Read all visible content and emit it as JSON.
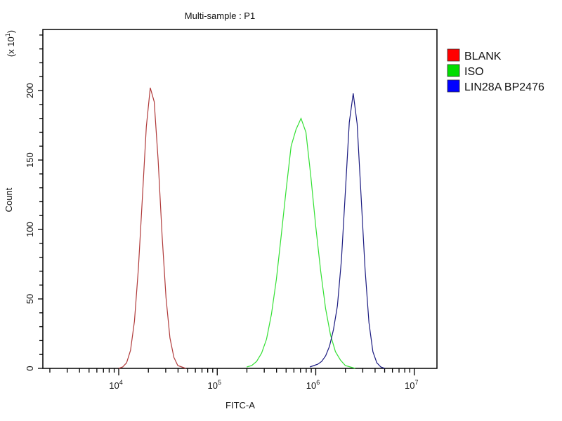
{
  "chart_data": {
    "type": "line",
    "title": "Multi-sample : P1",
    "xlabel": "FITC-A",
    "ylabel": "Count",
    "y_multiplier": {
      "prefix": "(x 10",
      "exp": "1",
      "suffix": ")"
    },
    "xscale": "log",
    "xlim_log10": [
      3.23,
      7.23
    ],
    "ylim": [
      0,
      244
    ],
    "grid": false,
    "legend_position": "right",
    "xticks": [
      {
        "value_log10": 4,
        "base": "10",
        "exp": "4"
      },
      {
        "value_log10": 5,
        "base": "10",
        "exp": "5"
      },
      {
        "value_log10": 6,
        "base": "10",
        "exp": "6"
      },
      {
        "value_log10": 7,
        "base": "10",
        "exp": "7"
      }
    ],
    "yticks": [
      {
        "value": 0,
        "label": "0"
      },
      {
        "value": 50,
        "label": "50"
      },
      {
        "value": 100,
        "label": "100"
      },
      {
        "value": 150,
        "label": "150"
      },
      {
        "value": 200,
        "label": "200"
      }
    ],
    "y_minor_step": 10,
    "series": [
      {
        "name": "BLANK",
        "color": "#ff0000",
        "line_color": "#b03a3a",
        "x_log10": [
          4.0,
          4.04,
          4.08,
          4.12,
          4.16,
          4.2,
          4.24,
          4.28,
          4.32,
          4.36,
          4.4,
          4.44,
          4.48,
          4.52,
          4.56,
          4.6,
          4.64,
          4.68
        ],
        "values": [
          0,
          1,
          4,
          13,
          34,
          72,
          123,
          174,
          202,
          192,
          150,
          96,
          51,
          22,
          8,
          2,
          1,
          0
        ]
      },
      {
        "name": "ISO",
        "color": "#00dd00",
        "line_color": "#33e033",
        "x_log10": [
          5.3,
          5.35,
          5.4,
          5.45,
          5.5,
          5.55,
          5.6,
          5.65,
          5.7,
          5.75,
          5.8,
          5.85,
          5.9,
          5.95,
          6.0,
          6.05,
          6.1,
          6.15,
          6.2,
          6.25,
          6.3,
          6.35,
          6.4
        ],
        "values": [
          1,
          2,
          5,
          11,
          21,
          39,
          64,
          96,
          129,
          160,
          172,
          180,
          170,
          138,
          102,
          70,
          43,
          24,
          12,
          6,
          2,
          1,
          0
        ]
      },
      {
        "name": "LIN28A BP2476",
        "color": "#0000ff",
        "line_color": "#1a1a80",
        "x_log10": [
          5.94,
          5.98,
          6.02,
          6.06,
          6.1,
          6.14,
          6.18,
          6.22,
          6.26,
          6.3,
          6.34,
          6.38,
          6.42,
          6.46,
          6.5,
          6.54,
          6.58,
          6.62,
          6.66,
          6.7
        ],
        "values": [
          1,
          2,
          3,
          5,
          9,
          16,
          28,
          45,
          78,
          127,
          177,
          198,
          176,
          124,
          72,
          33,
          12,
          4,
          1,
          0
        ]
      }
    ]
  }
}
